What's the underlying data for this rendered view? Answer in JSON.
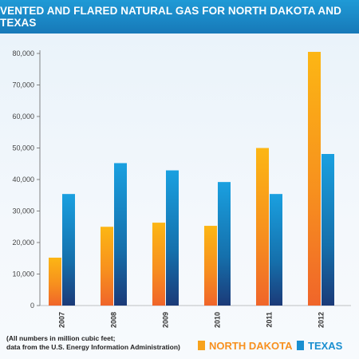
{
  "chart_data": {
    "type": "bar",
    "title": "VENTED AND FLARED NATURAL GAS FOR NORTH DAKOTA AND TEXAS",
    "categories": [
      "2007",
      "2008",
      "2009",
      "2010",
      "2011",
      "2012"
    ],
    "series": [
      {
        "name": "NORTH DAKOTA",
        "values": [
          15200,
          25000,
          26300,
          25300,
          50000,
          80500
        ],
        "color": "#f7a21c"
      },
      {
        "name": "TEXAS",
        "values": [
          35400,
          45200,
          42900,
          39200,
          35400,
          48100
        ],
        "color": "#1a8fd0"
      }
    ],
    "ylim": [
      0,
      80000
    ],
    "yticks": [
      "0",
      "10,000",
      "20,000",
      "30,000",
      "40,000",
      "50,000",
      "60,000",
      "70,000",
      "80,000"
    ],
    "legend_position": "bottom-right",
    "note_line1": "(All numbers in million cubic feet;",
    "note_line2": "data from the U.S. Energy Information Administration)"
  }
}
